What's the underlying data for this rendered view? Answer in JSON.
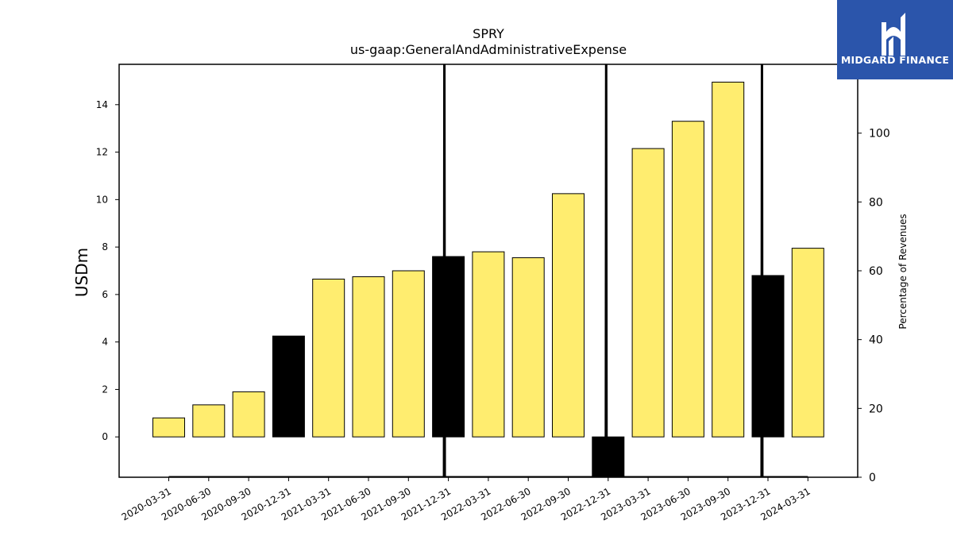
{
  "chart_data": {
    "type": "bar",
    "title": "SPRY",
    "subtitle": "us-gaap:GeneralAndAdministrativeExpense",
    "ylabel": "USDm",
    "y2label": "Percentage of Revenues",
    "ylim": [
      -1.7,
      15.7
    ],
    "yticks": [
      0,
      2,
      4,
      6,
      8,
      10,
      12,
      14
    ],
    "y2lim": [
      0,
      120
    ],
    "y2ticks": [
      0,
      20,
      40,
      60,
      80,
      100
    ],
    "categories": [
      "2020-03-31",
      "2020-06-30",
      "2020-09-30",
      "2020-12-31",
      "2021-03-31",
      "2021-06-30",
      "2021-09-30",
      "2021-12-31",
      "2022-03-31",
      "2022-06-30",
      "2022-09-30",
      "2022-12-31",
      "2023-03-31",
      "2023-06-30",
      "2023-09-30",
      "2023-12-31",
      "2024-03-31"
    ],
    "values": [
      0.8,
      1.35,
      1.9,
      4.25,
      6.65,
      6.75,
      7.0,
      7.6,
      7.8,
      7.55,
      10.25,
      -1.65,
      12.15,
      13.3,
      14.95,
      6.8,
      7.95
    ],
    "highlight": [
      false,
      false,
      false,
      true,
      false,
      false,
      false,
      true,
      false,
      false,
      false,
      true,
      false,
      false,
      false,
      true,
      false
    ],
    "pct_of_revenues": [
      0,
      0,
      0,
      0,
      0,
      0,
      0,
      0,
      0,
      0,
      0,
      0,
      0,
      0,
      0,
      0,
      0
    ],
    "pct_offscale_spikes": [
      6.9,
      10.95,
      14.85
    ],
    "colors": {
      "bar": "#ffed6f",
      "highlight": "#000000",
      "line": "#000000"
    },
    "grid": false
  },
  "logo": {
    "text": "MIDGARD FINANCE",
    "bg": "#2b55ab",
    "fg": "#ffffff"
  }
}
